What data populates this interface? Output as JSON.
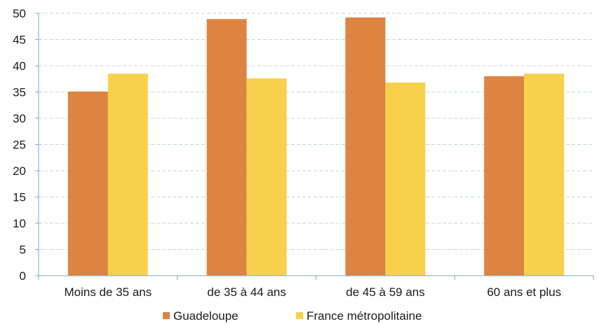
{
  "chart_data": {
    "type": "bar",
    "categories": [
      "Moins de 35 ans",
      "de 35 à 44 ans",
      "de 45 à 59 ans",
      "60 ans et plus"
    ],
    "series": [
      {
        "name": "Guadeloupe",
        "color": "#DD8443",
        "values": [
          35.1,
          48.9,
          49.2,
          38.0
        ]
      },
      {
        "name": "France métropolitaine",
        "color": "#F7D14C",
        "values": [
          38.5,
          37.6,
          36.8,
          38.5
        ]
      }
    ],
    "ylim": [
      0,
      50
    ],
    "yticks": [
      0,
      5,
      10,
      15,
      20,
      25,
      30,
      35,
      40,
      45,
      50
    ],
    "grid": true,
    "legend_position": "bottom"
  }
}
